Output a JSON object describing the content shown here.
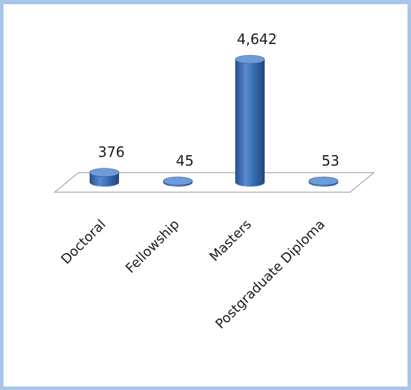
{
  "chart_data": {
    "type": "bar",
    "style": "3d-cylinder",
    "categories": [
      "Doctoral",
      "Fellowship",
      "Masters",
      "Postgraduate Diploma"
    ],
    "values": [
      376,
      45,
      4642,
      53
    ],
    "value_labels": [
      "376",
      "45",
      "4,642",
      "53"
    ],
    "title": "",
    "xlabel": "",
    "ylabel": "",
    "ylim": [
      0,
      4642
    ],
    "grid": false,
    "legend": "none",
    "colors": {
      "bar": "#3a6fb5",
      "bar_dark": "#234f8f",
      "bar_light": "#6f9bd8",
      "floor": "#ffffff",
      "floor_stroke": "#8c8c8c",
      "border": "#a6c6ea"
    }
  }
}
